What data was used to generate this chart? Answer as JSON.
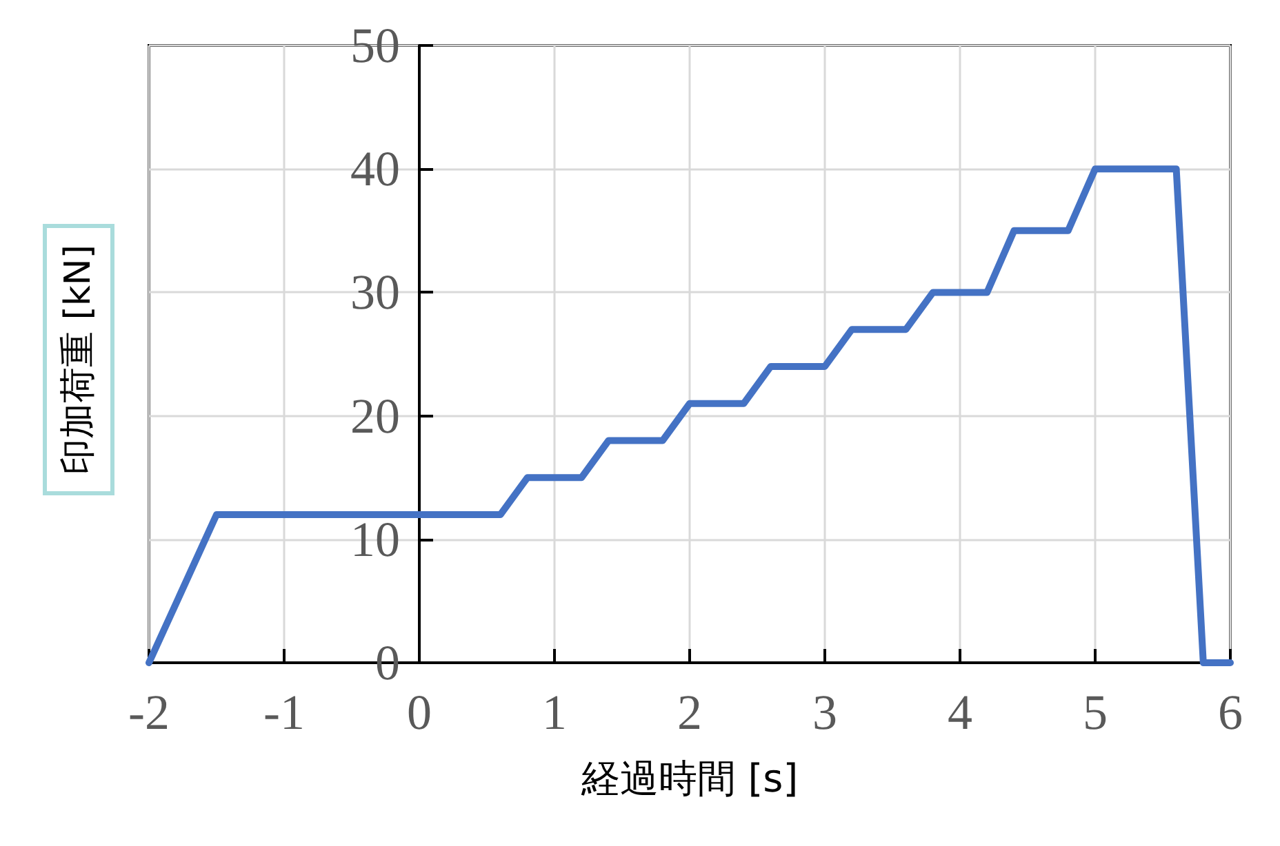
{
  "chart_data": {
    "type": "line",
    "xlabel": "経過時間 [s]",
    "ylabel": "印加荷重 [kN]",
    "x": [
      -2,
      -1.5,
      0.6,
      0.8,
      1.2,
      1.4,
      1.8,
      2,
      2.4,
      2.6,
      3,
      3.2,
      3.6,
      3.8,
      4.2,
      4.4,
      4.8,
      5,
      5.6,
      5.8,
      6
    ],
    "series": [
      {
        "color": "#4472c4",
        "values": [
          0,
          12,
          12,
          15,
          15,
          18,
          18,
          21,
          21,
          24,
          24,
          27,
          27,
          30,
          30,
          35,
          35,
          40,
          40,
          0,
          0
        ]
      }
    ],
    "xlim": [
      -2,
      6
    ],
    "xticks": [
      -2,
      -1,
      0,
      1,
      2,
      3,
      4,
      5,
      6
    ],
    "ylim": [
      0,
      50
    ],
    "yticks": [
      0,
      10,
      20,
      30,
      40,
      50
    ],
    "grid": true,
    "marker": "none",
    "line_style": "solid"
  }
}
